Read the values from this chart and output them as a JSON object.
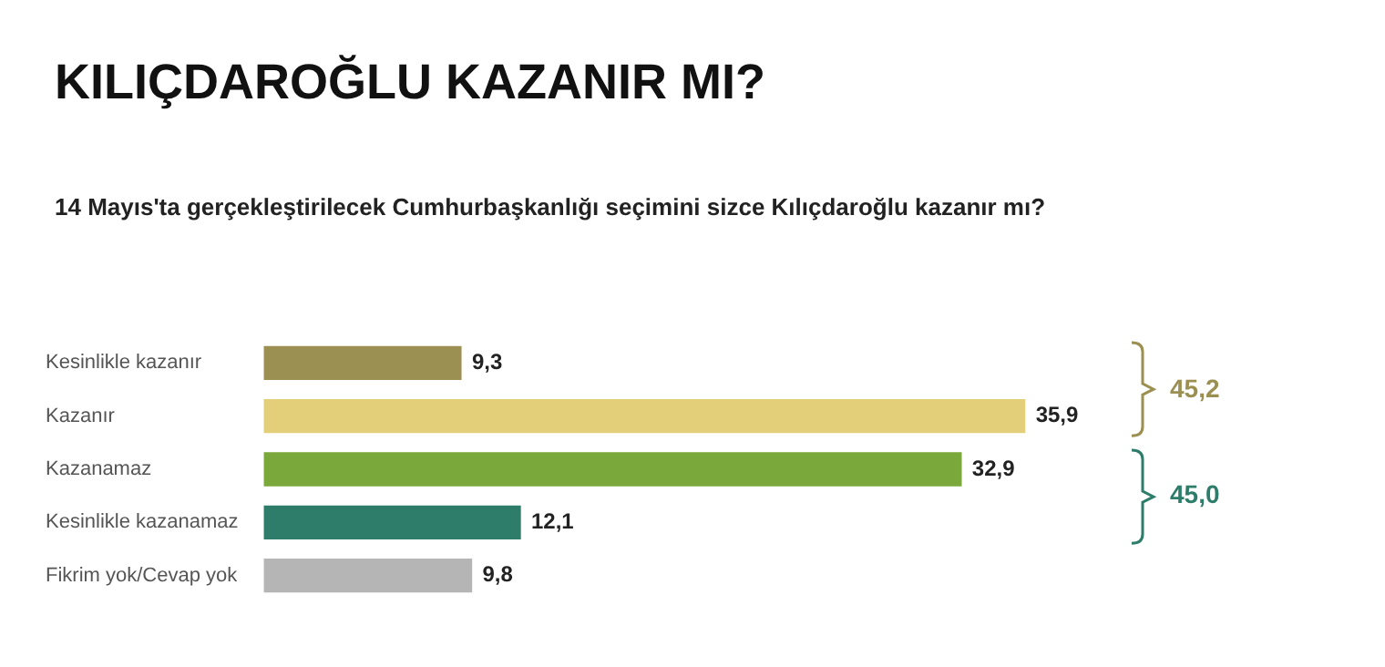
{
  "chart_data": {
    "type": "bar",
    "orientation": "horizontal",
    "title": "KILIÇDAROĞLU KAZANIR MI?",
    "subtitle": "14 Mayıs'ta gerçekleştirilecek Cumhurbaşkanlığı seçimini sizce Kılıçdaroğlu kazanır mı?",
    "categories": [
      "Kesinlikle kazanır",
      "Kazanır",
      "Kazanamaz",
      "Kesinlikle kazanamaz",
      "Fikrim yok/Cevap yok"
    ],
    "values": [
      9.3,
      35.9,
      32.9,
      12.1,
      9.8
    ],
    "value_labels": [
      "9,3",
      "35,9",
      "32,9",
      "12,1",
      "9,8"
    ],
    "colors": [
      "#9b8f52",
      "#e3cf7a",
      "#7aa83a",
      "#2e7d6b",
      "#b5b5b5"
    ],
    "grid": false,
    "legend": false,
    "annotations": [
      "45,2",
      "45,0"
    ]
  }
}
